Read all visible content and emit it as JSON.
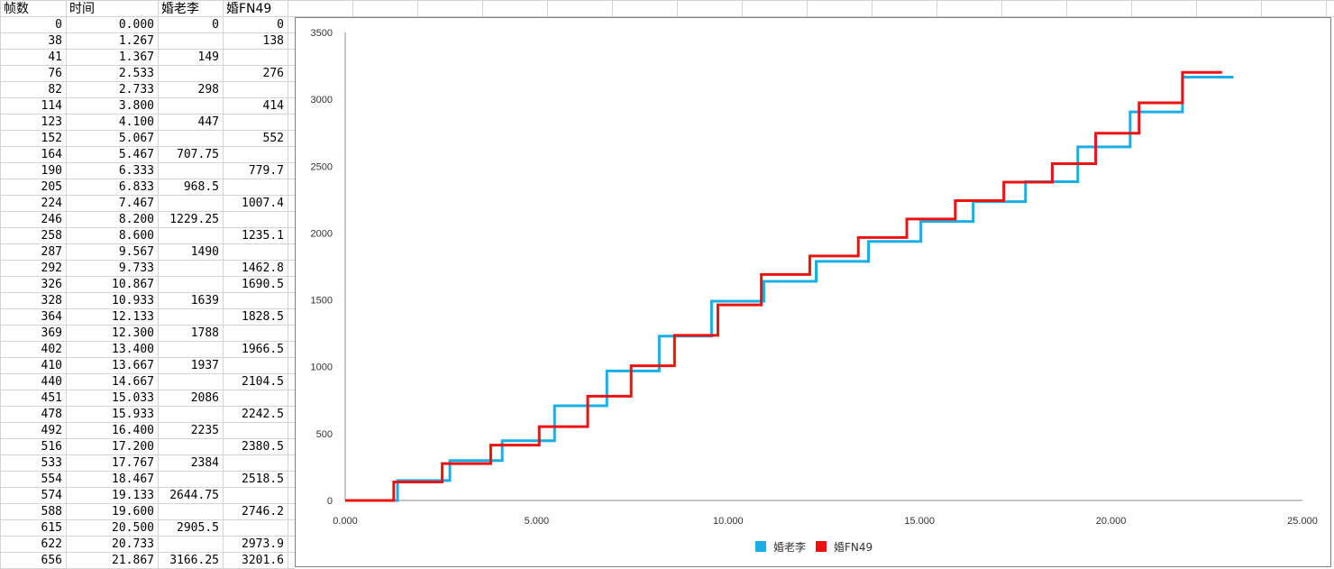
{
  "spreadsheet": {
    "headers": [
      "帧数",
      "时间",
      "婚老李",
      "婚FN49"
    ],
    "rows": [
      [
        "0",
        "0.000",
        "0",
        "0"
      ],
      [
        "38",
        "1.267",
        "",
        "138"
      ],
      [
        "41",
        "1.367",
        "149",
        ""
      ],
      [
        "76",
        "2.533",
        "",
        "276"
      ],
      [
        "82",
        "2.733",
        "298",
        ""
      ],
      [
        "114",
        "3.800",
        "",
        "414"
      ],
      [
        "123",
        "4.100",
        "447",
        ""
      ],
      [
        "152",
        "5.067",
        "",
        "552"
      ],
      [
        "164",
        "5.467",
        "707.75",
        ""
      ],
      [
        "190",
        "6.333",
        "",
        "779.7"
      ],
      [
        "205",
        "6.833",
        "968.5",
        ""
      ],
      [
        "224",
        "7.467",
        "",
        "1007.4"
      ],
      [
        "246",
        "8.200",
        "1229.25",
        ""
      ],
      [
        "258",
        "8.600",
        "",
        "1235.1"
      ],
      [
        "287",
        "9.567",
        "1490",
        ""
      ],
      [
        "292",
        "9.733",
        "",
        "1462.8"
      ],
      [
        "326",
        "10.867",
        "",
        "1690.5"
      ],
      [
        "328",
        "10.933",
        "1639",
        ""
      ],
      [
        "364",
        "12.133",
        "",
        "1828.5"
      ],
      [
        "369",
        "12.300",
        "1788",
        ""
      ],
      [
        "402",
        "13.400",
        "",
        "1966.5"
      ],
      [
        "410",
        "13.667",
        "1937",
        ""
      ],
      [
        "440",
        "14.667",
        "",
        "2104.5"
      ],
      [
        "451",
        "15.033",
        "2086",
        ""
      ],
      [
        "478",
        "15.933",
        "",
        "2242.5"
      ],
      [
        "492",
        "16.400",
        "2235",
        ""
      ],
      [
        "516",
        "17.200",
        "",
        "2380.5"
      ],
      [
        "533",
        "17.767",
        "2384",
        ""
      ],
      [
        "554",
        "18.467",
        "",
        "2518.5"
      ],
      [
        "574",
        "19.133",
        "2644.75",
        ""
      ],
      [
        "588",
        "19.600",
        "",
        "2746.2"
      ],
      [
        "615",
        "20.500",
        "2905.5",
        ""
      ],
      [
        "622",
        "20.733",
        "",
        "2973.9"
      ],
      [
        "656",
        "21.867",
        "3166.25",
        "3201.6"
      ]
    ]
  },
  "chart_data": {
    "type": "line",
    "step": true,
    "xlim": [
      0,
      25
    ],
    "ylim": [
      0,
      3500
    ],
    "x_ticks": [
      "0.000",
      "5.000",
      "10.000",
      "15.000",
      "20.000",
      "25.000"
    ],
    "y_ticks": [
      "0",
      "500",
      "1000",
      "1500",
      "2000",
      "2500",
      "3000",
      "3500"
    ],
    "grid": false,
    "legend_position": "bottom",
    "series": [
      {
        "name": "婚老李",
        "color": "#1aaee5",
        "points": [
          [
            0,
            0
          ],
          [
            1.367,
            149
          ],
          [
            2.733,
            298
          ],
          [
            4.1,
            447
          ],
          [
            5.467,
            707.75
          ],
          [
            6.833,
            968.5
          ],
          [
            8.2,
            1229.25
          ],
          [
            9.567,
            1490
          ],
          [
            10.933,
            1639
          ],
          [
            12.3,
            1788
          ],
          [
            13.667,
            1937
          ],
          [
            15.033,
            2086
          ],
          [
            16.4,
            2235
          ],
          [
            17.767,
            2384
          ],
          [
            19.133,
            2644.75
          ],
          [
            20.5,
            2905.5
          ],
          [
            21.867,
            3166.25
          ],
          [
            23.2,
            3166.25
          ]
        ]
      },
      {
        "name": "婚FN49",
        "color": "#ee1111",
        "points": [
          [
            0,
            0
          ],
          [
            1.267,
            138
          ],
          [
            2.533,
            276
          ],
          [
            3.8,
            414
          ],
          [
            5.067,
            552
          ],
          [
            6.333,
            779.7
          ],
          [
            7.467,
            1007.4
          ],
          [
            8.6,
            1235.1
          ],
          [
            9.733,
            1462.8
          ],
          [
            10.867,
            1690.5
          ],
          [
            12.133,
            1828.5
          ],
          [
            13.4,
            1966.5
          ],
          [
            14.667,
            2104.5
          ],
          [
            15.933,
            2242.5
          ],
          [
            17.2,
            2380.5
          ],
          [
            18.467,
            2518.5
          ],
          [
            19.6,
            2746.2
          ],
          [
            20.733,
            2973.9
          ],
          [
            21.867,
            3201.6
          ],
          [
            22.9,
            3201.6
          ]
        ]
      }
    ]
  }
}
